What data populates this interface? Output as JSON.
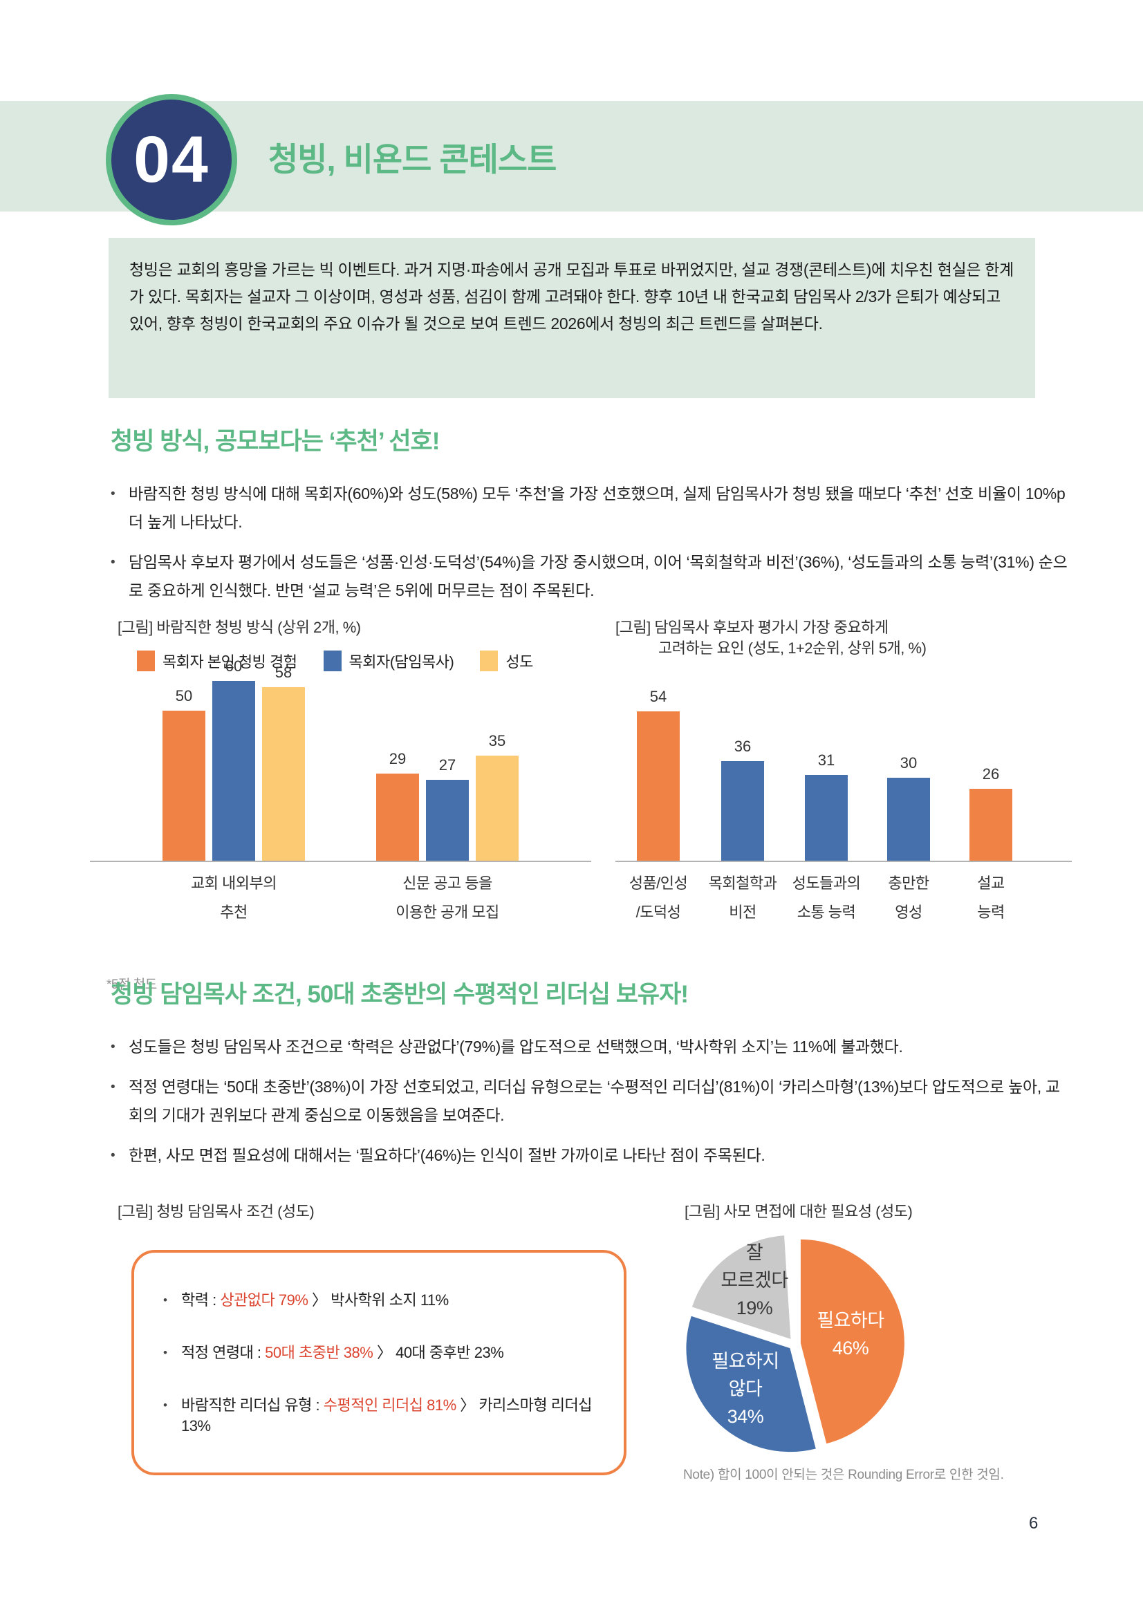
{
  "page": {
    "number": "6"
  },
  "header": {
    "badge": "04",
    "title": "청빙, 비욘드 콘테스트"
  },
  "intro": {
    "text": "청빙은 교회의 흥망을 가르는 빅 이벤트다. 과거 지명·파송에서 공개 모집과 투표로 바뀌었지만, 설교 경쟁(콘테스트)에 치우친 현실은 한계가 있다. 목회자는 설교자 그 이상이며, 영성과 성품, 섬김이 함께 고려돼야 한다. 향후 10년 내 한국교회 담임목사 2/3가 은퇴가 예상되고 있어, 향후 청빙이 한국교회의 주요 이슈가 될 것으로 보여 트렌드 2026에서 청빙의 최근 트렌드를 살펴본다."
  },
  "section1": {
    "heading": "청빙 방식, 공모보다는 ‘추천’ 선호!",
    "bullets": [
      "바람직한 청빙 방식에 대해 목회자(60%)와 성도(58%) 모두 ‘추천’을 가장 선호했으며, 실제 담임목사가 청빙 됐을 때보다 ‘추천’ 선호 비율이 10%p 더 높게 나타났다.",
      "담임목사 후보자 평가에서 성도들은 ‘성품·인성·도덕성’(54%)을 가장 중시했으며, 이어 ‘목회철학과 비전’(36%), ‘성도들과의 소통 능력’(31%) 순으로 중요하게 인식했다. 반면 ‘설교 능력’은 5위에 머무르는 점이 주목된다."
    ]
  },
  "section2": {
    "heading": "청빙 담임목사 조건, 50대 초중반의 수평적인 리더십 보유자!",
    "bullets": [
      "성도들은 청빙 담임목사 조건으로 ‘학력은 상관없다’(79%)를 압도적으로 선택했으며, ‘박사학위 소지’는 11%에 불과했다.",
      "적정 연령대는 ‘50대 초중반’(38%)이 가장 선호되었고, 리더십 유형으로는 ‘수평적인 리더십’(81%)이 ‘카리스마형’(13%)보다 압도적으로 높아, 교회의 기대가 권위보다 관계 중심으로 이동했음을 보여준다.",
      "한편, 사모 면접 필요성에 대해서는 ‘필요하다’(46%)는 인식이 절반 가까이로 나타난 점이 주목된다."
    ]
  },
  "figures": {
    "fig3_caption": "[그림] 청빙 담임목사 조건 (성도)"
  },
  "conditions_box": {
    "items": [
      {
        "prefix": "학력 : ",
        "highlight": "상관없다 79%",
        "suffix": " 〉 박사학위 소지 11%"
      },
      {
        "prefix": "적정 연령대 : ",
        "highlight": "50대 초중반 38%",
        "suffix": " 〉 40대 중후반 23%"
      },
      {
        "prefix": "바람직한 리더십 유형 : ",
        "highlight": "수평적인 리더십 81%",
        "suffix": " 〉 카리스마형 리더십 13%"
      }
    ]
  },
  "colors": {
    "accent_green": "#5cb884",
    "badge_navy": "#2f4077",
    "band_green": "#dbe9e1",
    "orange": "#f08245",
    "blue": "#4670ab",
    "yellow": "#fbca72",
    "pie_gray": "#c9c9c9",
    "highlight_red": "#dc442f"
  },
  "chart_data": [
    {
      "type": "bar",
      "title": "[그림] 바람직한 청빙 방식 (상위 2개, %)",
      "footnote": "*5점 척도",
      "legend_position": "top",
      "grid": false,
      "categories": [
        "교회 내외부의 추천",
        "신문 공고 등을 이용한 공개 모집"
      ],
      "category_lines": [
        [
          "교회 내외부의",
          "추천"
        ],
        [
          "신문 공고 등을",
          "이용한 공개 모집"
        ]
      ],
      "series": [
        {
          "name": "목회자 본인 청빙 경험",
          "color": "#f08245",
          "values": [
            50,
            29
          ]
        },
        {
          "name": "목회자(담임목사)",
          "color": "#4670ab",
          "values": [
            60,
            27
          ]
        },
        {
          "name": "성도",
          "color": "#fbca72",
          "values": [
            58,
            35
          ]
        }
      ],
      "ylim": [
        0,
        60
      ]
    },
    {
      "type": "bar",
      "title": "[그림] 담임목사 후보자 평가시 가장 중요하게 고려하는 요인 (성도, 1+2순위, 상위 5개, %)",
      "title_lines": [
        "[그림] 담임목사 후보자 평가시 가장 중요하게",
        "고려하는 요인 (성도, 1+2순위, 상위 5개, %)"
      ],
      "grid": false,
      "categories": [
        "성품/인성/도덕성",
        "목회철학과 비전",
        "성도들과의 소통 능력",
        "충만한 영성",
        "설교 능력"
      ],
      "category_lines": [
        [
          "성품/인성",
          "/도덕성"
        ],
        [
          "목회철학과",
          "비전"
        ],
        [
          "성도들과의",
          "소통 능력"
        ],
        [
          "충만한",
          "영성"
        ],
        [
          "설교",
          "능력"
        ]
      ],
      "values": [
        54,
        36,
        31,
        30,
        26
      ],
      "bar_colors": [
        "#f08245",
        "#4670ab",
        "#4670ab",
        "#4670ab",
        "#f08245"
      ],
      "ylim": [
        0,
        60
      ]
    },
    {
      "type": "pie",
      "title": "[그림] 사모 면접에 대한 필요성 (성도)",
      "labels": [
        "필요하다",
        "필요하지 않다",
        "잘 모르겠다"
      ],
      "values": [
        46,
        34,
        19
      ],
      "colors": [
        "#f08245",
        "#4670ab",
        "#c9c9c9"
      ],
      "label_colors": [
        "#ffffff",
        "#ffffff",
        "#3a3a3a"
      ],
      "display_lines": [
        [
          "필요하다",
          "46%"
        ],
        [
          "필요하지",
          "않다",
          "34%"
        ],
        [
          "잘",
          "모르겠다",
          "19%"
        ]
      ],
      "note": "Note) 합이 100이 안되는 것은 Rounding Error로 인한 것임.",
      "total": 100,
      "start_angle_deg": 0
    }
  ]
}
